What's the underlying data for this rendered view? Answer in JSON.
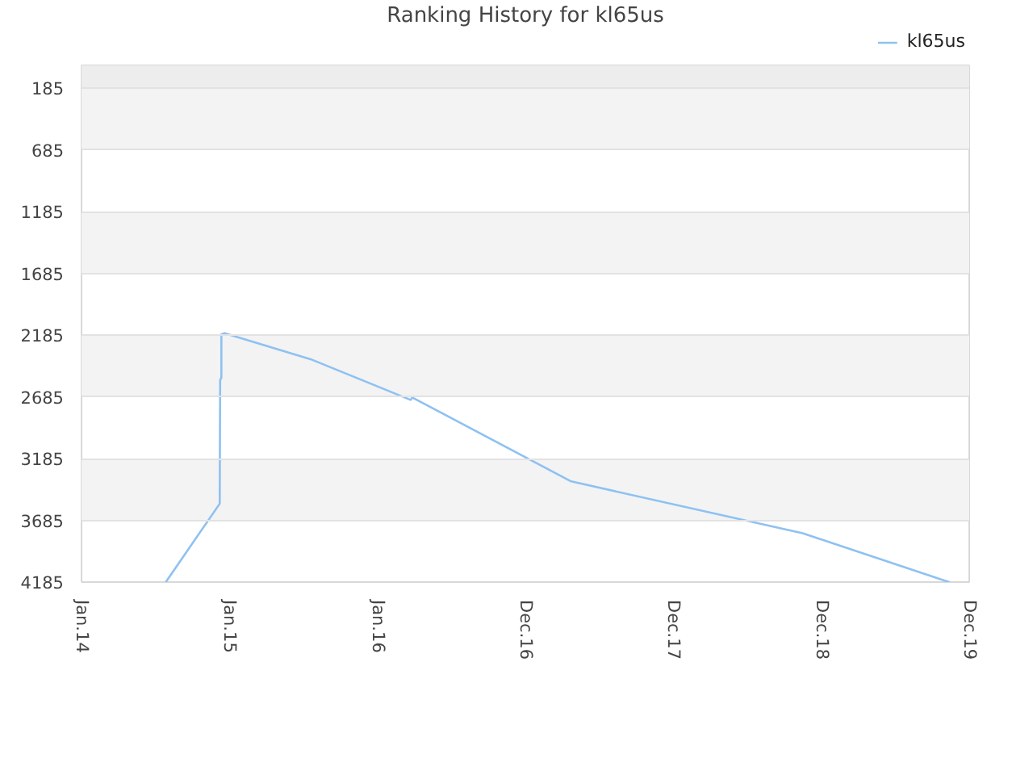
{
  "chart_data": {
    "type": "line",
    "title": "Ranking History for kl65us",
    "x": [
      "2014-07-28",
      "2014-12-08",
      "2014-12-09",
      "2014-12-12",
      "2014-12-12",
      "2014-12-20",
      "2015-07-20",
      "2016-03-23",
      "2016-03-27",
      "2017-04-23",
      "2018-11-15",
      "2019-11-11"
    ],
    "series": [
      {
        "name": "kl65us",
        "color": "#8ec1f2",
        "values": [
          4185,
          3550,
          2550,
          2530,
          2180,
          2170,
          2380,
          2710,
          2690,
          3370,
          3790,
          4185
        ]
      }
    ],
    "xlim": [
      "2014-01-01",
      "2019-12-31"
    ],
    "xticks": [
      {
        "value": "2014-01-01",
        "label": "Jan.14"
      },
      {
        "value": "2015-01-01",
        "label": "Jan.15"
      },
      {
        "value": "2016-01-01",
        "label": "Jan.16"
      },
      {
        "value": "2016-12-31",
        "label": "Dec.16"
      },
      {
        "value": "2017-12-31",
        "label": "Dec.17"
      },
      {
        "value": "2018-12-31",
        "label": "Dec.18"
      },
      {
        "value": "2019-12-31",
        "label": "Dec.19"
      }
    ],
    "ylim": [
      4185,
      1
    ],
    "yticks": [
      185,
      685,
      1185,
      1685,
      2185,
      2685,
      3185,
      3685,
      4185
    ],
    "bands": [
      {
        "axis": "y",
        "from": 1,
        "to": 185,
        "color": "#ededed"
      },
      {
        "axis": "y",
        "from": 185,
        "to": 685,
        "color": "#f3f3f3"
      },
      {
        "axis": "y",
        "from": 1185,
        "to": 1685,
        "color": "#f3f3f3"
      },
      {
        "axis": "y",
        "from": 2185,
        "to": 2685,
        "color": "#f3f3f3"
      },
      {
        "axis": "y",
        "from": 3185,
        "to": 3685,
        "color": "#f3f3f3"
      }
    ],
    "grid": "y",
    "legend": "top right"
  }
}
